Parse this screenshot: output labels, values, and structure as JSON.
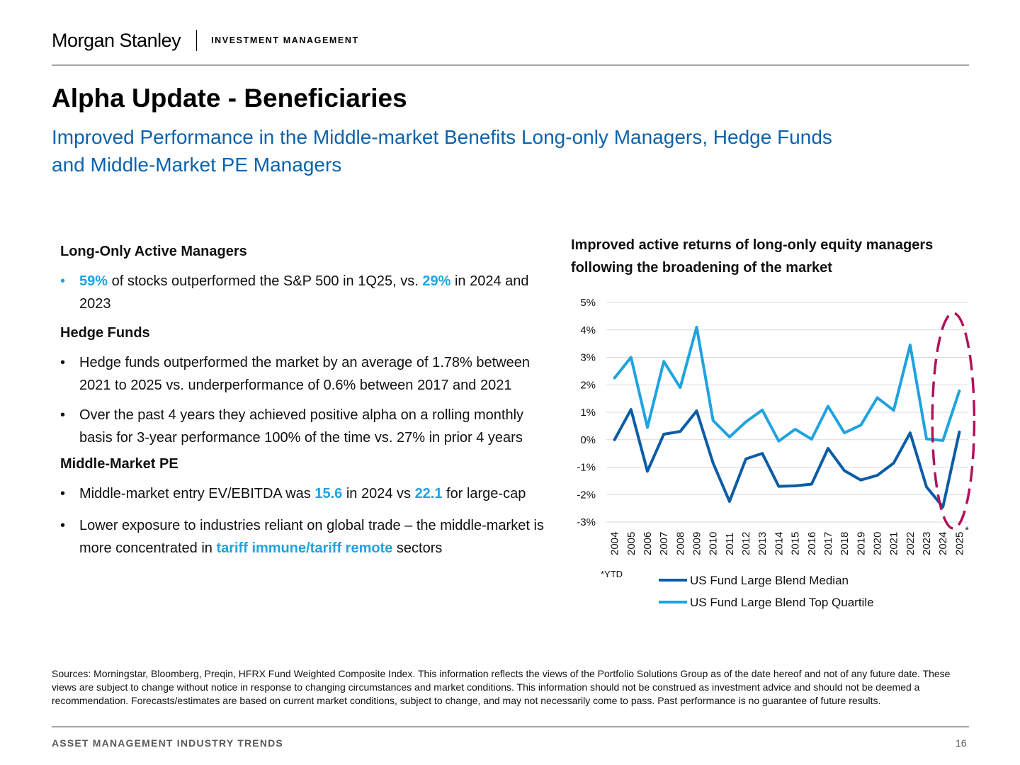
{
  "header": {
    "brand": "Morgan Stanley",
    "division": "INVESTMENT MANAGEMENT"
  },
  "title": "Alpha Update - Beneficiaries",
  "subtitle_line1": "Improved Performance in the Middle-market Benefits Long-only Managers, Hedge Funds",
  "subtitle_line2": "and Middle-Market PE Managers",
  "left": {
    "long_only": {
      "heading": "Long-Only Active Managers",
      "b1": {
        "dot": "•",
        "pct1": "59%",
        "t1": " of stocks outperformed the S&P 500 in 1Q25, vs. ",
        "pct2": "29%",
        "t2": " in 2024 and 2023"
      }
    },
    "hedge": {
      "heading": "Hedge Funds",
      "b1": {
        "dot": "•",
        "text": "Hedge funds outperformed the market by an average of 1.78% between 2021 to 2025 vs. underperformance of 0.6% between 2017 and 2021"
      },
      "b2": {
        "dot": "•",
        "text": "Over the past 4 years they achieved positive alpha on a rolling monthly basis for 3-year performance 100% of the time vs. 27% in prior 4 years"
      }
    },
    "pe": {
      "heading": "Middle-Market PE",
      "b1": {
        "dot": "•",
        "t1": "Middle-market entry EV/EBITDA was ",
        "v1": "15.6",
        "t2": " in 2024 vs ",
        "v2": "22.1",
        "t3": " for large-cap"
      },
      "b2": {
        "dot": "•",
        "t1": "Lower exposure to industries reliant on global trade – the middle-market is more concentrated in ",
        "hl": "tariff immune/tariff remote",
        "t2": " sectors"
      }
    }
  },
  "chart_title_line1": "Improved active returns of long-only equity managers",
  "chart_title_line2": "following the broadening of the market",
  "chart_data": {
    "type": "line",
    "x": [
      "2004",
      "2005",
      "2006",
      "2007",
      "2008",
      "2009",
      "2010",
      "2011",
      "2012",
      "2013",
      "2014",
      "2015",
      "2016",
      "2017",
      "2018",
      "2019",
      "2020",
      "2021",
      "2022",
      "2023",
      "2024",
      "2025*"
    ],
    "series": [
      {
        "name": "US Fund Large Blend Median",
        "color": "#0b5ca6",
        "values": [
          0.0,
          1.1,
          -1.15,
          0.2,
          0.3,
          1.05,
          -0.85,
          -2.25,
          -0.7,
          -0.5,
          -1.7,
          -1.68,
          -1.62,
          -0.32,
          -1.13,
          -1.47,
          -1.3,
          -0.85,
          0.25,
          -1.72,
          -2.45,
          0.28
        ]
      },
      {
        "name": "US Fund Large Blend Top Quartile",
        "color": "#1fa3e0",
        "values": [
          2.25,
          3.0,
          0.45,
          2.85,
          1.9,
          4.1,
          0.7,
          0.1,
          0.65,
          1.08,
          -0.05,
          0.38,
          0.02,
          1.22,
          0.25,
          0.53,
          1.53,
          1.07,
          3.45,
          0.03,
          -0.03,
          1.78
        ]
      }
    ],
    "y_ticks": [
      "5%",
      "4%",
      "3%",
      "2%",
      "1%",
      "0%",
      "-1%",
      "-2%",
      "-3%"
    ],
    "ylim": [
      -3,
      5
    ],
    "grid": "horizontal",
    "legend": "bottom",
    "note": "*YTD",
    "highlight": {
      "from": "2024",
      "to": "2025*",
      "color": "#b0135a",
      "style": "dashed ellipse"
    }
  },
  "sources": "Sources: Morningstar, Bloomberg, Preqin, HFRX Fund Weighted Composite Index. This information reflects the views of the Portfolio Solutions Group as of the date hereof and not of any future date. These views are subject to change without notice in response to changing circumstances and market conditions. This information should not be construed as investment advice and should not be deemed a recommendation. Forecasts/estimates are based on current market conditions, subject to change, and may not necessarily come to pass. Past performance is no guarantee of future results.",
  "footer": {
    "label": "ASSET MANAGEMENT INDUSTRY TRENDS",
    "page": "16"
  }
}
